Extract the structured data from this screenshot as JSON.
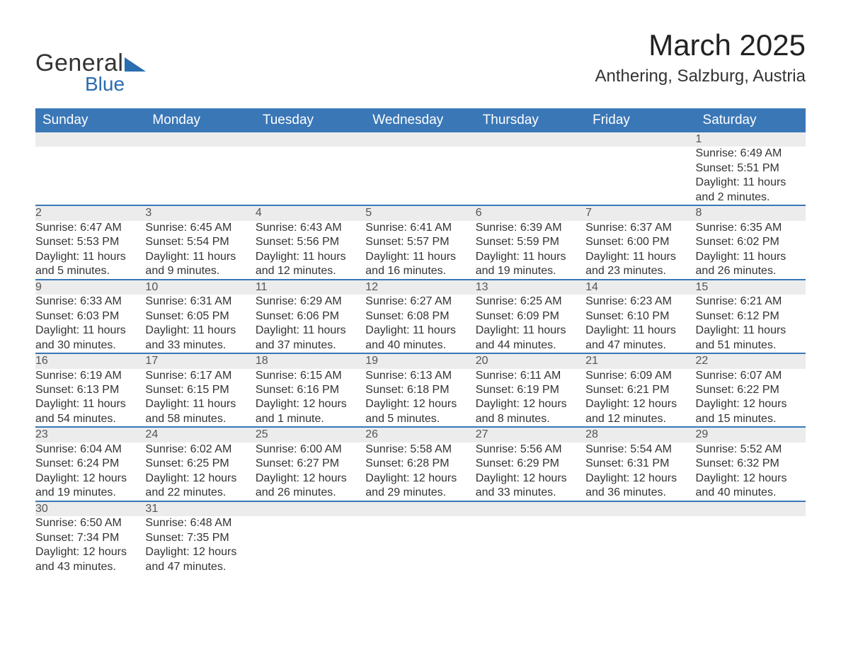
{
  "logo": {
    "text_general": "General",
    "text_blue": "Blue"
  },
  "title": {
    "month": "March 2025",
    "location": "Anthering, Salzburg, Austria"
  },
  "colors": {
    "header_bg": "#3a77b7",
    "header_text": "#ffffff",
    "daynum_bg": "#ececec",
    "daynum_text": "#555555",
    "row_border": "#3a77b7",
    "body_text": "#333333",
    "logo_blue": "#2a6db0"
  },
  "weekdays": [
    "Sunday",
    "Monday",
    "Tuesday",
    "Wednesday",
    "Thursday",
    "Friday",
    "Saturday"
  ],
  "weeks": [
    [
      null,
      null,
      null,
      null,
      null,
      null,
      {
        "n": "1",
        "sr": "Sunrise: 6:49 AM",
        "ss": "Sunset: 5:51 PM",
        "dl": "Daylight: 11 hours and 2 minutes."
      }
    ],
    [
      {
        "n": "2",
        "sr": "Sunrise: 6:47 AM",
        "ss": "Sunset: 5:53 PM",
        "dl": "Daylight: 11 hours and 5 minutes."
      },
      {
        "n": "3",
        "sr": "Sunrise: 6:45 AM",
        "ss": "Sunset: 5:54 PM",
        "dl": "Daylight: 11 hours and 9 minutes."
      },
      {
        "n": "4",
        "sr": "Sunrise: 6:43 AM",
        "ss": "Sunset: 5:56 PM",
        "dl": "Daylight: 11 hours and 12 minutes."
      },
      {
        "n": "5",
        "sr": "Sunrise: 6:41 AM",
        "ss": "Sunset: 5:57 PM",
        "dl": "Daylight: 11 hours and 16 minutes."
      },
      {
        "n": "6",
        "sr": "Sunrise: 6:39 AM",
        "ss": "Sunset: 5:59 PM",
        "dl": "Daylight: 11 hours and 19 minutes."
      },
      {
        "n": "7",
        "sr": "Sunrise: 6:37 AM",
        "ss": "Sunset: 6:00 PM",
        "dl": "Daylight: 11 hours and 23 minutes."
      },
      {
        "n": "8",
        "sr": "Sunrise: 6:35 AM",
        "ss": "Sunset: 6:02 PM",
        "dl": "Daylight: 11 hours and 26 minutes."
      }
    ],
    [
      {
        "n": "9",
        "sr": "Sunrise: 6:33 AM",
        "ss": "Sunset: 6:03 PM",
        "dl": "Daylight: 11 hours and 30 minutes."
      },
      {
        "n": "10",
        "sr": "Sunrise: 6:31 AM",
        "ss": "Sunset: 6:05 PM",
        "dl": "Daylight: 11 hours and 33 minutes."
      },
      {
        "n": "11",
        "sr": "Sunrise: 6:29 AM",
        "ss": "Sunset: 6:06 PM",
        "dl": "Daylight: 11 hours and 37 minutes."
      },
      {
        "n": "12",
        "sr": "Sunrise: 6:27 AM",
        "ss": "Sunset: 6:08 PM",
        "dl": "Daylight: 11 hours and 40 minutes."
      },
      {
        "n": "13",
        "sr": "Sunrise: 6:25 AM",
        "ss": "Sunset: 6:09 PM",
        "dl": "Daylight: 11 hours and 44 minutes."
      },
      {
        "n": "14",
        "sr": "Sunrise: 6:23 AM",
        "ss": "Sunset: 6:10 PM",
        "dl": "Daylight: 11 hours and 47 minutes."
      },
      {
        "n": "15",
        "sr": "Sunrise: 6:21 AM",
        "ss": "Sunset: 6:12 PM",
        "dl": "Daylight: 11 hours and 51 minutes."
      }
    ],
    [
      {
        "n": "16",
        "sr": "Sunrise: 6:19 AM",
        "ss": "Sunset: 6:13 PM",
        "dl": "Daylight: 11 hours and 54 minutes."
      },
      {
        "n": "17",
        "sr": "Sunrise: 6:17 AM",
        "ss": "Sunset: 6:15 PM",
        "dl": "Daylight: 11 hours and 58 minutes."
      },
      {
        "n": "18",
        "sr": "Sunrise: 6:15 AM",
        "ss": "Sunset: 6:16 PM",
        "dl": "Daylight: 12 hours and 1 minute."
      },
      {
        "n": "19",
        "sr": "Sunrise: 6:13 AM",
        "ss": "Sunset: 6:18 PM",
        "dl": "Daylight: 12 hours and 5 minutes."
      },
      {
        "n": "20",
        "sr": "Sunrise: 6:11 AM",
        "ss": "Sunset: 6:19 PM",
        "dl": "Daylight: 12 hours and 8 minutes."
      },
      {
        "n": "21",
        "sr": "Sunrise: 6:09 AM",
        "ss": "Sunset: 6:21 PM",
        "dl": "Daylight: 12 hours and 12 minutes."
      },
      {
        "n": "22",
        "sr": "Sunrise: 6:07 AM",
        "ss": "Sunset: 6:22 PM",
        "dl": "Daylight: 12 hours and 15 minutes."
      }
    ],
    [
      {
        "n": "23",
        "sr": "Sunrise: 6:04 AM",
        "ss": "Sunset: 6:24 PM",
        "dl": "Daylight: 12 hours and 19 minutes."
      },
      {
        "n": "24",
        "sr": "Sunrise: 6:02 AM",
        "ss": "Sunset: 6:25 PM",
        "dl": "Daylight: 12 hours and 22 minutes."
      },
      {
        "n": "25",
        "sr": "Sunrise: 6:00 AM",
        "ss": "Sunset: 6:27 PM",
        "dl": "Daylight: 12 hours and 26 minutes."
      },
      {
        "n": "26",
        "sr": "Sunrise: 5:58 AM",
        "ss": "Sunset: 6:28 PM",
        "dl": "Daylight: 12 hours and 29 minutes."
      },
      {
        "n": "27",
        "sr": "Sunrise: 5:56 AM",
        "ss": "Sunset: 6:29 PM",
        "dl": "Daylight: 12 hours and 33 minutes."
      },
      {
        "n": "28",
        "sr": "Sunrise: 5:54 AM",
        "ss": "Sunset: 6:31 PM",
        "dl": "Daylight: 12 hours and 36 minutes."
      },
      {
        "n": "29",
        "sr": "Sunrise: 5:52 AM",
        "ss": "Sunset: 6:32 PM",
        "dl": "Daylight: 12 hours and 40 minutes."
      }
    ],
    [
      {
        "n": "30",
        "sr": "Sunrise: 6:50 AM",
        "ss": "Sunset: 7:34 PM",
        "dl": "Daylight: 12 hours and 43 minutes."
      },
      {
        "n": "31",
        "sr": "Sunrise: 6:48 AM",
        "ss": "Sunset: 7:35 PM",
        "dl": "Daylight: 12 hours and 47 minutes."
      },
      null,
      null,
      null,
      null,
      null
    ]
  ]
}
